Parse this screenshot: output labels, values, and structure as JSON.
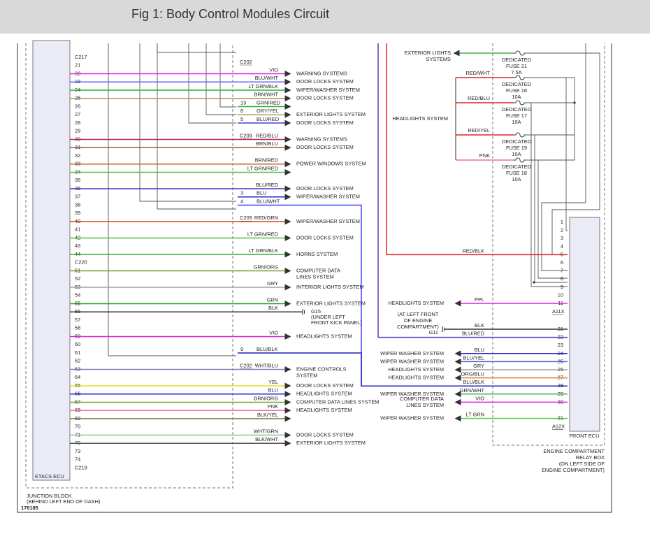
{
  "header": {
    "title": "Fig 1: Body Control Modules Circuit"
  },
  "etacs": {
    "name": "ETACS ECU",
    "block": [
      "JUNCTION BLOCK",
      "(BEHIND LEFT END OF DASH)"
    ],
    "rows": [
      {
        "n": "C217",
        "conn_label": "C202"
      },
      {
        "n": "21"
      },
      {
        "n": "22",
        "wire": "VIO",
        "dest": [
          "WARNING SYSTEMS"
        ],
        "color": "#e020e0"
      },
      {
        "n": "23",
        "wire": "BLU/WHT",
        "dest": [
          "DOOR LOCKS SYSTEM"
        ],
        "color": "#6060ff"
      },
      {
        "n": "24",
        "wire": "LT GRN/BLK",
        "dest": [
          "WIPER/WASHER SYSTEM"
        ],
        "color": "#30b030"
      },
      {
        "n": "25",
        "wire": "BRN/WHT",
        "dest": [
          "DOOR LOCKS SYSTEM"
        ],
        "color": "#b09060"
      },
      {
        "n": "26",
        "conn": "13",
        "wire": "GRN/RED",
        "color": "#30b030"
      },
      {
        "n": "27",
        "conn": "8",
        "wire": "GRY/YEL",
        "dest": [
          "EXTERIOR LIGHTS SYSTEM"
        ],
        "color": "#a0a060"
      },
      {
        "n": "28",
        "conn": "5",
        "wire": "BLU/RED",
        "dest": [
          "DOOR LOCKS SYSTEM"
        ],
        "color": "#4040e0"
      },
      {
        "n": "29",
        "conn_label": "C209"
      },
      {
        "n": "30",
        "wire": "RED/BLU",
        "dest": [
          "WARNING SYSTEMS"
        ],
        "color": "#c02060"
      },
      {
        "n": "31",
        "wire": "BRN/BLU",
        "dest": [
          "DOOR LOCKS SYSTEM"
        ],
        "color": "#906040"
      },
      {
        "n": "32"
      },
      {
        "n": "33",
        "wire": "BRN/RED",
        "dest": [
          "POWER WINDOWS SYSTEM"
        ],
        "color": "#c06030"
      },
      {
        "n": "34",
        "wire": "LT GRN/RED",
        "color": "#50c040"
      },
      {
        "n": "35"
      },
      {
        "n": "36",
        "wire": "BLU/RED",
        "dest": [
          "DOOR LOCKS SYSTEM"
        ],
        "color": "#5030c0"
      },
      {
        "n": "37",
        "conn": "3",
        "wire": "BLU",
        "dest": [
          "WIPER/WASHER SYSTEM"
        ],
        "color": "#2020e0"
      },
      {
        "n": "38",
        "conn": "4",
        "wire": "BLU/WHT",
        "color": "#4040ff"
      },
      {
        "n": "39",
        "conn_label": "C209"
      },
      {
        "n": "40",
        "wire": "RED/GRN",
        "dest": [
          "WIPER/WASHER SYSTEM"
        ],
        "color": "#e04010"
      },
      {
        "n": "41"
      },
      {
        "n": "42",
        "wire": "LT GRN/RED",
        "dest": [
          "DOOR LOCKS SYSTEM"
        ],
        "color": "#50c040"
      },
      {
        "n": "43"
      },
      {
        "n": "44",
        "wire": "LT GRN/BLK",
        "dest": [
          "HORNS SYSTEM"
        ],
        "color": "#30b030"
      },
      {
        "n": "C220"
      },
      {
        "n": "51",
        "wire": "GRN/ORG",
        "dest": [
          "COMPUTER DATA",
          "LINES SYSTEM"
        ],
        "color": "#70a030"
      },
      {
        "n": "52"
      },
      {
        "n": "53",
        "wire": "GRY",
        "dest": [
          "INTERIOR LIGHTS SYSTEM"
        ],
        "color": "#a0a0a0"
      },
      {
        "n": "54"
      },
      {
        "n": "55",
        "wire": "GRN",
        "dest": [
          "EXTERIOR LIGHTS SYSTEM"
        ],
        "color": "#20a020"
      },
      {
        "n": "56",
        "wire": "BLK",
        "ground": "G15",
        "note": [
          "(UNDER LEFT",
          "FRONT KICK PANEL)"
        ],
        "color": "#333333"
      },
      {
        "n": "57"
      },
      {
        "n": "58"
      },
      {
        "n": "59",
        "wire": "VIO",
        "dest": [
          "HEADLIGHTS SYSTEM"
        ],
        "color": "#e020e0"
      },
      {
        "n": "60"
      },
      {
        "n": "61",
        "conn": "9",
        "wire": "BLU/BLK",
        "color": "#2020c0"
      },
      {
        "n": "62",
        "conn_label": "C202"
      },
      {
        "n": "63",
        "wire": "WHT/BLU",
        "dest": [
          "ENGINE CONTROLS",
          "SYSTEM"
        ],
        "color": "#8080c0"
      },
      {
        "n": "64"
      },
      {
        "n": "65",
        "wire": "YEL",
        "dest": [
          "DOOR LOCKS SYSTEM"
        ],
        "color": "#e0e020"
      },
      {
        "n": "66",
        "wire": "BLU",
        "dest": [
          "HEADLIGHTS SYSTEM"
        ],
        "color": "#2020e0"
      },
      {
        "n": "67",
        "wire": "GRN/ORG",
        "dest": [
          "COMPUTER DATA LINES SYSTEM"
        ],
        "color": "#70a030"
      },
      {
        "n": "68",
        "wire": "PNK",
        "dest": [
          "HEADLIGHTS SYSTEM"
        ],
        "color": "#f070a0"
      },
      {
        "n": "69",
        "wire": "BLK/YEL",
        "color": "#707040"
      },
      {
        "n": "70"
      },
      {
        "n": "71",
        "wire": "WHT/GRN",
        "dest": [
          "DOOR LOCKS SYSTEM"
        ],
        "color": "#90c090"
      },
      {
        "n": "72",
        "wire": "BLK/WHT",
        "dest": [
          "EXTERIOR LIGHTS SYSTEM"
        ],
        "color": "#555555"
      },
      {
        "n": "73"
      },
      {
        "n": "74"
      },
      {
        "n": "C219"
      }
    ]
  },
  "relay_box": {
    "label": [
      "ENGINE COMPARTMENT",
      "RELAY BOX",
      "(ON LEFT SIDE OF",
      "ENGINE COMPARTMENT)"
    ],
    "exterior": [
      "EXTERIOR LIGHTS",
      "SYSTEMS"
    ],
    "headlights": "HEADLIGHTS SYSTEM",
    "fuses": [
      {
        "lines": [
          "DEDICATED",
          "FUSE 21",
          "7.5A"
        ],
        "color": "#40b040"
      },
      {
        "wire": "RED/WHT",
        "lines": [
          "DEDICATED",
          "FUSE 16",
          "10A"
        ],
        "color": "#e02020"
      },
      {
        "wire": "RED/BLU",
        "lines": [
          "DEDICATED",
          "FUSE 17",
          "10A"
        ],
        "color": "#e02020"
      },
      {
        "wire": "RED/YEL",
        "lines": [
          "DEDICATED",
          "FUSE 19",
          "10A"
        ],
        "color": "#e02020"
      },
      {
        "wire": "PNK",
        "lines": [
          "DEDICATED",
          "FUSE 18",
          "10A"
        ],
        "color": "#f07090"
      }
    ]
  },
  "front_ecu": {
    "name": "FRONT ECU",
    "connector_a": "A11X",
    "connector_b": "A12X",
    "pins_a": [
      {
        "n": "1"
      },
      {
        "n": "2"
      },
      {
        "n": "3"
      },
      {
        "n": "4"
      },
      {
        "n": "5",
        "wire": "RED/BLK",
        "color": "#e02020"
      },
      {
        "n": "6"
      },
      {
        "n": "7"
      },
      {
        "n": "8"
      },
      {
        "n": "9"
      },
      {
        "n": "10"
      },
      {
        "n": "11",
        "wire": "PPL",
        "dest": [
          "HEADLIGHTS SYSTEM"
        ],
        "color": "#e020e0"
      }
    ],
    "pins_b": [
      {
        "n": "21",
        "wire": "BLK",
        "ground": "G11",
        "note": [
          "(AT LEFT FRONT",
          "OF ENGINE",
          "COMPARTMENT)"
        ],
        "color": "#333333"
      },
      {
        "n": "22",
        "wire": "BLU/RED",
        "color": "#6030c0"
      },
      {
        "n": "23"
      },
      {
        "n": "24",
        "wire": "BLU",
        "dest": [
          "WIPER WASHER SYSTEM"
        ],
        "color": "#2020e0"
      },
      {
        "n": "25",
        "wire": "BLU/YEL",
        "dest": [
          "WIPER WASHER SYSTEM"
        ],
        "color": "#4060d0"
      },
      {
        "n": "26",
        "wire": "GRY",
        "dest": [
          "HEADLIGHTS SYSTEM"
        ],
        "color": "#a0a0a0"
      },
      {
        "n": "27",
        "wire": "ORG/BLU",
        "dest": [
          "HEADLIGHTS SYSTEM"
        ],
        "color": "#e08030"
      },
      {
        "n": "28",
        "wire": "BLU/BLK",
        "color": "#2020c0"
      },
      {
        "n": "29",
        "wire": "GRN/WHT",
        "dest": [
          "WIPER WASHER SYSTEM"
        ],
        "color": "#40b060"
      },
      {
        "n": "30",
        "wire": "VIO",
        "dest": [
          "COMPUTER DATA",
          "LINES SYSTEM"
        ],
        "color": "#e020e0"
      },
      {
        "n": "31",
        "wire": "LT GRN",
        "dest": [
          "WIPER WASHER SYSTEM"
        ],
        "color": "#40d040"
      }
    ]
  },
  "figure_id": "176185"
}
